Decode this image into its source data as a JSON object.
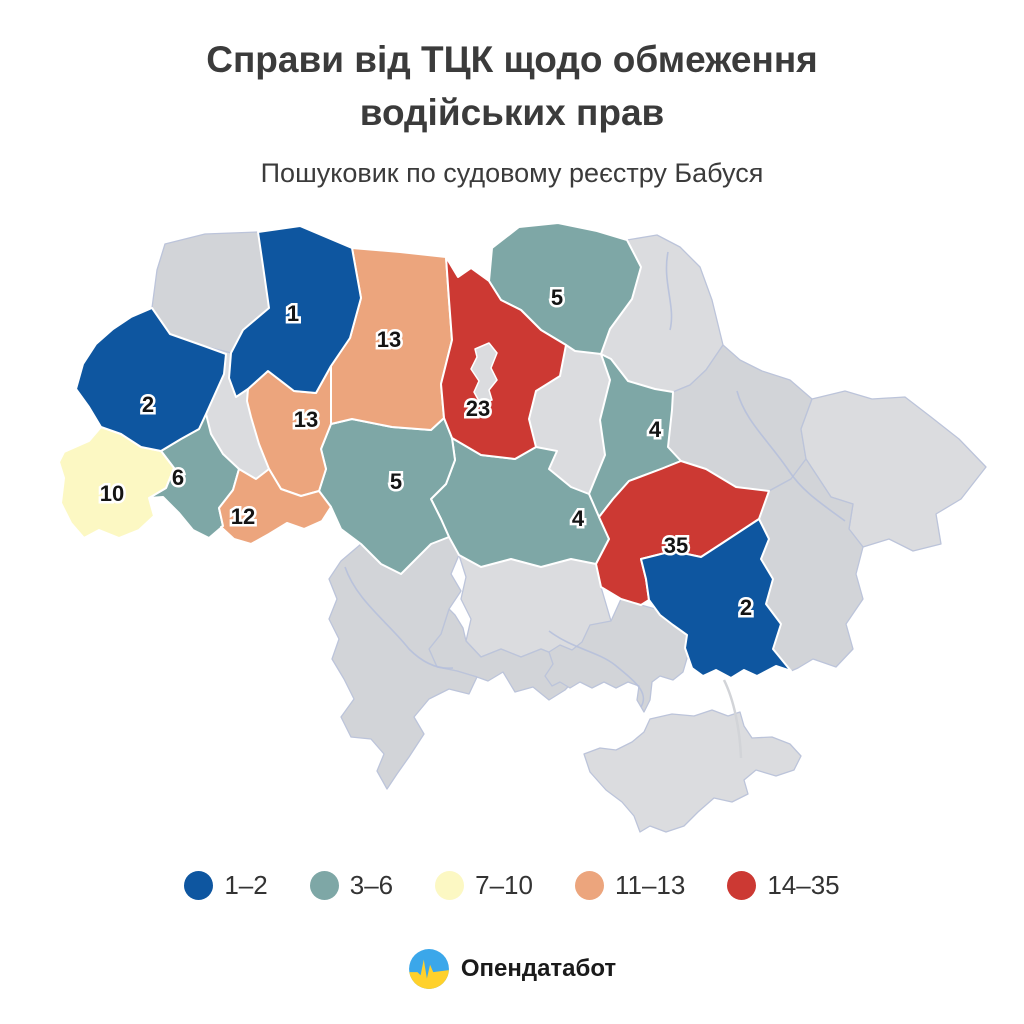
{
  "title_line1": "Справи від ТЦК щодо обмеження",
  "title_line2": "водійських прав",
  "subtitle": "Пошуковик по судовому реєстру Бабуся",
  "footer": {
    "brand": "Опендатабот",
    "logo_icon": "opendatabot-flag-pulse-icon"
  },
  "colors": {
    "no_data_gray": "#d2d4d8",
    "no_data_gray_light": "#dbdcdf",
    "inner_border": "#bcc4da",
    "river": "#b6c0dc",
    "label_text": "#141414",
    "label_halo": "#ffffff",
    "title_text": "#3b3b3b",
    "logo_blue": "#3ba7ea",
    "logo_yellow": "#ffd12b"
  },
  "chart_data": {
    "type": "heatmap",
    "subtype": "choropleth map of Ukraine oblasts",
    "title": "Справи від ТЦК щодо обмеження водійських прав",
    "subtitle": "Пошуковик по судовому реєстру Бабуся",
    "legend_position": "bottom",
    "bins": [
      {
        "label": "1–2",
        "color": "#0e56a0"
      },
      {
        "label": "3–6",
        "color": "#7ea7a6"
      },
      {
        "label": "7–10",
        "color": "#fcf8c3"
      },
      {
        "label": "11–13",
        "color": "#eca57d"
      },
      {
        "label": "14–35",
        "color": "#cc3933"
      }
    ],
    "regions": [
      {
        "id": "volyn",
        "value": null,
        "bin": null
      },
      {
        "id": "rivne",
        "value": 1,
        "bin": "1–2"
      },
      {
        "id": "lviv",
        "value": 2,
        "bin": "1–2"
      },
      {
        "id": "ternopil",
        "value": null,
        "bin": null
      },
      {
        "id": "zakarpattia",
        "value": 10,
        "bin": "7–10"
      },
      {
        "id": "ivano_frankivsk",
        "value": 6,
        "bin": "3–6"
      },
      {
        "id": "chernivtsi",
        "value": 12,
        "bin": "11–13"
      },
      {
        "id": "khmelnytskyi",
        "value": 13,
        "bin": "11–13"
      },
      {
        "id": "zhytomyr",
        "value": 13,
        "bin": "11–13"
      },
      {
        "id": "vinnytsia",
        "value": 5,
        "bin": "3–6"
      },
      {
        "id": "kyiv_oblast",
        "value": 23,
        "bin": "14–35"
      },
      {
        "id": "kyiv_city",
        "value": null,
        "bin": null
      },
      {
        "id": "chernihiv",
        "value": 5,
        "bin": "3–6"
      },
      {
        "id": "sumy",
        "value": null,
        "bin": null
      },
      {
        "id": "left_bank",
        "value": null,
        "bin": null
      },
      {
        "id": "poltava",
        "value": 4,
        "bin": "3–6"
      },
      {
        "id": "cherkasy",
        "value": 4,
        "bin": "3–6"
      },
      {
        "id": "kirovohrad",
        "value": null,
        "bin": null
      },
      {
        "id": "kharkiv",
        "value": null,
        "bin": null
      },
      {
        "id": "luhansk",
        "value": null,
        "bin": null
      },
      {
        "id": "donetsk",
        "value": null,
        "bin": null
      },
      {
        "id": "dnipropetrovsk",
        "value": 35,
        "bin": "14–35"
      },
      {
        "id": "zaporizhzhia",
        "value": 2,
        "bin": "1–2"
      },
      {
        "id": "mykolaiv",
        "value": null,
        "bin": null
      },
      {
        "id": "odesa",
        "value": null,
        "bin": null
      },
      {
        "id": "kherson",
        "value": null,
        "bin": null
      },
      {
        "id": "crimea",
        "value": null,
        "bin": null
      }
    ]
  }
}
